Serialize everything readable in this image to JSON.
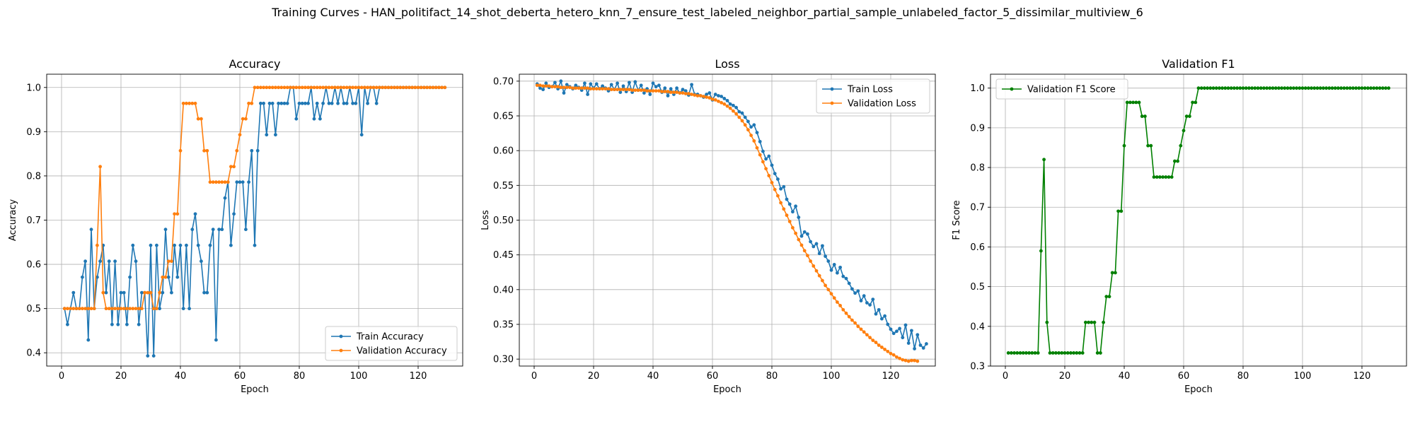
{
  "suptitle": "Training Curves - HAN_politifact_14_shot_deberta_hetero_knn_7_ensure_test_labeled_neighbor_partial_sample_unlabeled_factor_5_dissimilar_multiview_6",
  "colors": {
    "blue": "#1f77b4",
    "orange": "#ff7f0e",
    "green": "#008000",
    "grid": "#b0b0b0"
  },
  "chart_data": [
    {
      "type": "line",
      "title": "Accuracy",
      "xlabel": "Epoch",
      "ylabel": "Accuracy",
      "xlim": [
        -5,
        135
      ],
      "ylim": [
        0.37,
        1.03
      ],
      "xticks": [
        0,
        20,
        40,
        60,
        80,
        100,
        120
      ],
      "yticks": [
        0.4,
        0.5,
        0.6,
        0.7,
        0.8,
        0.9,
        1.0
      ],
      "ytick_labels": [
        "0.4",
        "0.5",
        "0.6",
        "0.7",
        "0.8",
        "0.9",
        "1.0"
      ],
      "grid": true,
      "legend": "lower-right",
      "series": [
        {
          "name": "Train Accuracy",
          "color": "#1f77b4",
          "values": [
            0.5,
            0.464,
            0.5,
            0.536,
            0.5,
            0.5,
            0.571,
            0.607,
            0.429,
            0.679,
            0.5,
            0.571,
            0.607,
            0.643,
            0.536,
            0.607,
            0.464,
            0.607,
            0.464,
            0.536,
            0.536,
            0.464,
            0.571,
            0.643,
            0.607,
            0.464,
            0.536,
            0.536,
            0.393,
            0.643,
            0.393,
            0.643,
            0.5,
            0.536,
            0.679,
            0.571,
            0.536,
            0.643,
            0.571,
            0.643,
            0.5,
            0.643,
            0.5,
            0.679,
            0.714,
            0.643,
            0.607,
            0.536,
            0.536,
            0.643,
            0.679,
            0.429,
            0.679,
            0.679,
            0.75,
            0.786,
            0.643,
            0.714,
            0.786,
            0.786,
            0.786,
            0.679,
            0.786,
            0.857,
            0.643,
            0.857,
            0.964,
            0.964,
            0.893,
            0.964,
            0.964,
            0.893,
            0.964,
            0.964,
            0.964,
            0.964,
            1.0,
            1.0,
            0.929,
            0.964,
            0.964,
            0.964,
            0.964,
            1.0,
            0.929,
            0.964,
            0.929,
            0.964,
            1.0,
            0.964,
            0.964,
            1.0,
            0.964,
            1.0,
            0.964,
            0.964,
            1.0,
            0.964,
            0.964,
            1.0,
            0.893,
            1.0,
            0.964,
            1.0,
            1.0,
            0.964,
            1.0,
            1.0,
            1.0,
            1.0,
            1.0,
            1.0,
            1.0,
            1.0,
            1.0,
            1.0,
            1.0,
            1.0,
            1.0,
            1.0,
            1.0,
            1.0,
            1.0,
            1.0,
            1.0,
            1.0,
            1.0,
            1.0,
            1.0
          ]
        },
        {
          "name": "Validation Accuracy",
          "color": "#ff7f0e",
          "values": [
            0.5,
            0.5,
            0.5,
            0.5,
            0.5,
            0.5,
            0.5,
            0.5,
            0.5,
            0.5,
            0.5,
            0.643,
            0.821,
            0.536,
            0.5,
            0.5,
            0.5,
            0.5,
            0.5,
            0.5,
            0.5,
            0.5,
            0.5,
            0.5,
            0.5,
            0.5,
            0.5,
            0.536,
            0.536,
            0.536,
            0.5,
            0.5,
            0.536,
            0.571,
            0.571,
            0.607,
            0.607,
            0.714,
            0.714,
            0.857,
            0.964,
            0.964,
            0.964,
            0.964,
            0.964,
            0.929,
            0.929,
            0.857,
            0.857,
            0.786,
            0.786,
            0.786,
            0.786,
            0.786,
            0.786,
            0.786,
            0.821,
            0.821,
            0.857,
            0.893,
            0.929,
            0.929,
            0.964,
            0.964,
            1.0,
            1.0,
            1.0,
            1.0,
            1.0,
            1.0,
            1.0,
            1.0,
            1.0,
            1.0,
            1.0,
            1.0,
            1.0,
            1.0,
            1.0,
            1.0,
            1.0,
            1.0,
            1.0,
            1.0,
            1.0,
            1.0,
            1.0,
            1.0,
            1.0,
            1.0,
            1.0,
            1.0,
            1.0,
            1.0,
            1.0,
            1.0,
            1.0,
            1.0,
            1.0,
            1.0,
            1.0,
            1.0,
            1.0,
            1.0,
            1.0,
            1.0,
            1.0,
            1.0,
            1.0,
            1.0,
            1.0,
            1.0,
            1.0,
            1.0,
            1.0,
            1.0,
            1.0,
            1.0,
            1.0,
            1.0,
            1.0,
            1.0,
            1.0,
            1.0,
            1.0,
            1.0,
            1.0,
            1.0,
            1.0
          ]
        }
      ]
    },
    {
      "type": "line",
      "title": "Loss",
      "xlabel": "Epoch",
      "ylabel": "Loss",
      "xlim": [
        -5,
        135
      ],
      "ylim": [
        0.29,
        0.71
      ],
      "xticks": [
        0,
        20,
        40,
        60,
        80,
        100,
        120
      ],
      "yticks": [
        0.3,
        0.35,
        0.4,
        0.45,
        0.5,
        0.55,
        0.6,
        0.65,
        0.7
      ],
      "ytick_labels": [
        "0.30",
        "0.35",
        "0.40",
        "0.45",
        "0.50",
        "0.55",
        "0.60",
        "0.65",
        "0.70"
      ],
      "grid": true,
      "legend": "top-right",
      "series": [
        {
          "name": "Train Loss",
          "color": "#1f77b4",
          "values": [
            0.696,
            0.69,
            0.688,
            0.697,
            0.691,
            0.692,
            0.698,
            0.689,
            0.7,
            0.683,
            0.695,
            0.692,
            0.689,
            0.694,
            0.691,
            0.687,
            0.697,
            0.681,
            0.696,
            0.69,
            0.696,
            0.689,
            0.693,
            0.69,
            0.686,
            0.695,
            0.688,
            0.697,
            0.684,
            0.693,
            0.685,
            0.698,
            0.684,
            0.699,
            0.687,
            0.694,
            0.683,
            0.689,
            0.681,
            0.697,
            0.692,
            0.694,
            0.684,
            0.69,
            0.679,
            0.689,
            0.681,
            0.69,
            0.683,
            0.688,
            0.686,
            0.68,
            0.695,
            0.681,
            0.681,
            0.679,
            0.677,
            0.681,
            0.683,
            0.673,
            0.681,
            0.679,
            0.678,
            0.675,
            0.672,
            0.667,
            0.665,
            0.662,
            0.656,
            0.654,
            0.648,
            0.642,
            0.634,
            0.637,
            0.626,
            0.613,
            0.599,
            0.588,
            0.592,
            0.579,
            0.567,
            0.559,
            0.545,
            0.548,
            0.53,
            0.523,
            0.512,
            0.52,
            0.504,
            0.477,
            0.483,
            0.48,
            0.469,
            0.462,
            0.466,
            0.452,
            0.463,
            0.448,
            0.441,
            0.428,
            0.436,
            0.424,
            0.432,
            0.419,
            0.416,
            0.409,
            0.401,
            0.395,
            0.398,
            0.384,
            0.391,
            0.381,
            0.378,
            0.386,
            0.365,
            0.371,
            0.358,
            0.362,
            0.35,
            0.343,
            0.337,
            0.34,
            0.344,
            0.331,
            0.349,
            0.323,
            0.341,
            0.315,
            0.335,
            0.32,
            0.316,
            0.322
          ]
        },
        {
          "name": "Validation Loss",
          "color": "#ff7f0e",
          "values": [
            0.694,
            0.694,
            0.693,
            0.693,
            0.693,
            0.692,
            0.692,
            0.692,
            0.691,
            0.691,
            0.691,
            0.691,
            0.69,
            0.69,
            0.69,
            0.69,
            0.69,
            0.69,
            0.689,
            0.689,
            0.689,
            0.689,
            0.689,
            0.689,
            0.689,
            0.688,
            0.688,
            0.688,
            0.688,
            0.688,
            0.688,
            0.688,
            0.687,
            0.687,
            0.687,
            0.687,
            0.687,
            0.686,
            0.686,
            0.686,
            0.686,
            0.686,
            0.685,
            0.685,
            0.685,
            0.684,
            0.684,
            0.684,
            0.683,
            0.683,
            0.682,
            0.682,
            0.681,
            0.68,
            0.679,
            0.679,
            0.678,
            0.677,
            0.676,
            0.674,
            0.673,
            0.671,
            0.669,
            0.667,
            0.664,
            0.661,
            0.657,
            0.653,
            0.648,
            0.643,
            0.637,
            0.63,
            0.622,
            0.614,
            0.604,
            0.594,
            0.584,
            0.574,
            0.564,
            0.554,
            0.544,
            0.535,
            0.525,
            0.516,
            0.507,
            0.498,
            0.489,
            0.481,
            0.472,
            0.464,
            0.456,
            0.449,
            0.441,
            0.434,
            0.427,
            0.42,
            0.413,
            0.406,
            0.4,
            0.394,
            0.388,
            0.382,
            0.377,
            0.371,
            0.366,
            0.361,
            0.356,
            0.352,
            0.347,
            0.343,
            0.339,
            0.335,
            0.331,
            0.327,
            0.324,
            0.32,
            0.317,
            0.314,
            0.311,
            0.308,
            0.306,
            0.303,
            0.301,
            0.299,
            0.298,
            0.297,
            0.298,
            0.298,
            0.297
          ]
        }
      ]
    },
    {
      "type": "line",
      "title": "Validation F1",
      "xlabel": "Epoch",
      "ylabel": "F1 Score",
      "xlim": [
        -5,
        135
      ],
      "ylim": [
        0.3,
        1.035
      ],
      "xticks": [
        0,
        20,
        40,
        60,
        80,
        100,
        120
      ],
      "yticks": [
        0.3,
        0.4,
        0.5,
        0.6,
        0.7,
        0.8,
        0.9,
        1.0
      ],
      "ytick_labels": [
        "0.3",
        "0.4",
        "0.5",
        "0.6",
        "0.7",
        "0.8",
        "0.9",
        "1.0"
      ],
      "grid": true,
      "legend": "top-left",
      "series": [
        {
          "name": "Validation F1 Score",
          "color": "#008000",
          "values": [
            0.333,
            0.333,
            0.333,
            0.333,
            0.333,
            0.333,
            0.333,
            0.333,
            0.333,
            0.333,
            0.333,
            0.59,
            0.82,
            0.41,
            0.333,
            0.333,
            0.333,
            0.333,
            0.333,
            0.333,
            0.333,
            0.333,
            0.333,
            0.333,
            0.333,
            0.333,
            0.41,
            0.41,
            0.41,
            0.41,
            0.333,
            0.333,
            0.41,
            0.475,
            0.475,
            0.535,
            0.535,
            0.69,
            0.69,
            0.855,
            0.964,
            0.964,
            0.964,
            0.964,
            0.964,
            0.929,
            0.929,
            0.855,
            0.855,
            0.776,
            0.776,
            0.776,
            0.776,
            0.776,
            0.776,
            0.776,
            0.816,
            0.816,
            0.855,
            0.893,
            0.929,
            0.929,
            0.964,
            0.964,
            1.0,
            1.0,
            1.0,
            1.0,
            1.0,
            1.0,
            1.0,
            1.0,
            1.0,
            1.0,
            1.0,
            1.0,
            1.0,
            1.0,
            1.0,
            1.0,
            1.0,
            1.0,
            1.0,
            1.0,
            1.0,
            1.0,
            1.0,
            1.0,
            1.0,
            1.0,
            1.0,
            1.0,
            1.0,
            1.0,
            1.0,
            1.0,
            1.0,
            1.0,
            1.0,
            1.0,
            1.0,
            1.0,
            1.0,
            1.0,
            1.0,
            1.0,
            1.0,
            1.0,
            1.0,
            1.0,
            1.0,
            1.0,
            1.0,
            1.0,
            1.0,
            1.0,
            1.0,
            1.0,
            1.0,
            1.0,
            1.0,
            1.0,
            1.0,
            1.0,
            1.0,
            1.0,
            1.0,
            1.0,
            1.0
          ]
        }
      ]
    }
  ]
}
